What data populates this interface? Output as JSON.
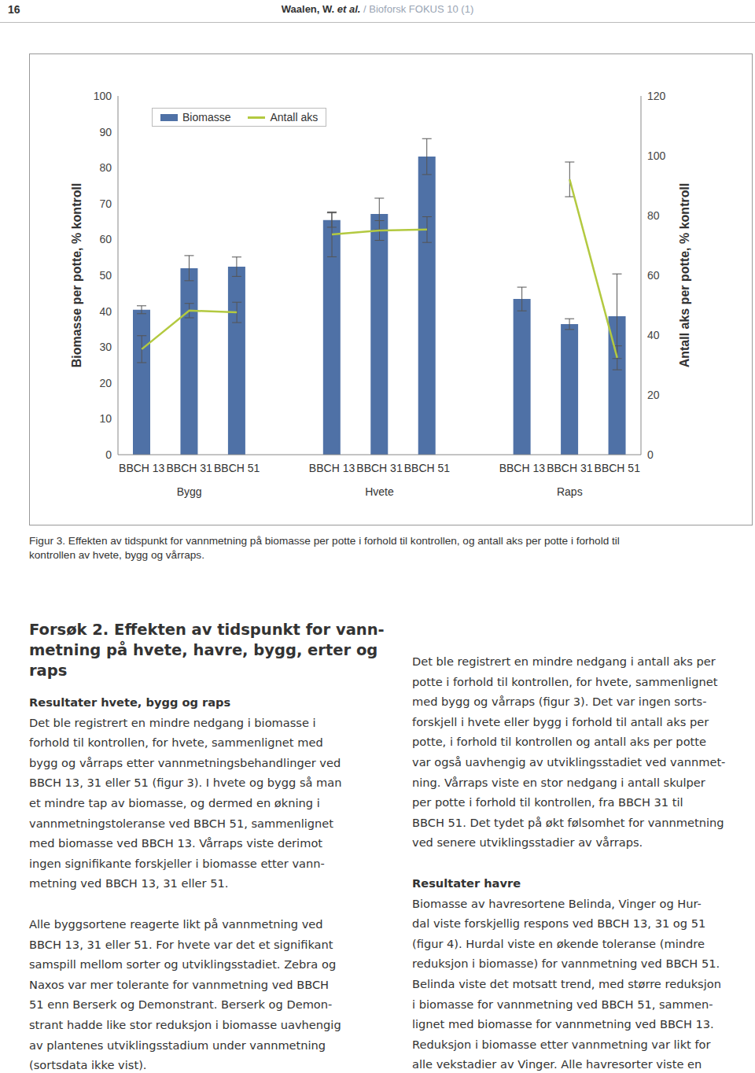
{
  "header": {
    "page_number": "16",
    "authors": "Waalen, W.",
    "et_al": "et al.",
    "journal": "/ Bioforsk FOKUS 10 (1)"
  },
  "chart_data": {
    "type": "bar",
    "categories": [
      "BBCH 13",
      "BBCH 31",
      "BBCH 51",
      null,
      "BBCH 13",
      "BBCH 31",
      "BBCH 51",
      null,
      "BBCH 13",
      "BBCH 31",
      "BBCH 51"
    ],
    "group_labels": [
      null,
      "Bygg",
      null,
      null,
      null,
      "Hvete",
      null,
      null,
      null,
      "Raps",
      null
    ],
    "series": [
      {
        "name": "Biomasse",
        "type": "bar",
        "color": "#4f71a6",
        "values": [
          40.4,
          52.0,
          52.4,
          null,
          65.4,
          67.1,
          83.1,
          null,
          43.4,
          36.4,
          38.6
        ],
        "errors": [
          1.1,
          3.5,
          2.7,
          null,
          2.0,
          4.4,
          5.0,
          null,
          3.3,
          1.5,
          11.8
        ]
      },
      {
        "name": "Antall aks",
        "type": "line",
        "color": "#b3c940",
        "axis": "y2",
        "values": [
          35.3,
          48.2,
          47.6,
          null,
          73.7,
          75.0,
          75.3,
          null,
          null,
          92.1,
          32.4
        ],
        "errors": [
          4.5,
          2.4,
          3.4,
          null,
          7.5,
          3.3,
          4.3,
          null,
          null,
          5.8,
          4.0
        ]
      }
    ],
    "ylabel": "Biomasse per potte, % kontroll",
    "y2label": "Antall aks per potte, % kontroll",
    "ylim": [
      0,
      100
    ],
    "yticks": [
      0,
      10,
      20,
      30,
      40,
      50,
      60,
      70,
      80,
      90,
      100
    ],
    "y2lim": [
      0,
      120
    ],
    "y2ticks": [
      0,
      20,
      40,
      60,
      80,
      100,
      120
    ],
    "legend": "top",
    "grid": false
  },
  "caption": [
    "Figur 3. Effekten av tidspunkt for vannmetning på biomasse per potte i forhold til kontrollen, og antall aks per potte i forhold til",
    "kontrollen av hvete, bygg og vårraps."
  ],
  "body": {
    "left": [
      {
        "kind": "heading",
        "lines": [
          "Forsøk 2. Effekten av tidspunkt for vann-",
          "metning på hvete, havre, bygg, erter og",
          "raps"
        ]
      },
      {
        "kind": "subheading",
        "lines": [
          "Resultater hvete, bygg og raps"
        ]
      },
      {
        "kind": "paragraph",
        "lines": [
          "Det ble registrert en mindre nedgang i biomasse i",
          "forhold til kontrollen, for hvete, sammenlignet med",
          "bygg og vårraps etter vannmetningsbehandlinger ved",
          "BBCH 13, 31 eller 51 (figur 3). I hvete og bygg så man",
          "et mindre tap av biomasse, og dermed en økning i",
          "vannmetningstoleranse ved BBCH 51, sammenlignet",
          "med biomasse ved BBCH 13. Vårraps viste derimot",
          "ingen signifikante forskjeller i biomasse etter vann-",
          "metning ved BBCH 13, 31 eller 51."
        ]
      },
      {
        "kind": "paragraph",
        "lines": [
          "Alle byggsortene reagerte likt på vannmetning ved",
          "BBCH 13, 31 eller 51. For hvete var det et signifikant",
          "samspill mellom sorter og utviklingsstadiet. Zebra og",
          "Naxos var mer tolerante for vannmetning ved BBCH",
          "51 enn Berserk og Demonstrant. Berserk og Demon-",
          "strant hadde like stor reduksjon i biomasse uavhengig",
          "av plantenes utviklingsstadium under vannmetning",
          "(sortsdata ikke vist)."
        ]
      }
    ],
    "right": [
      {
        "kind": "paragraph",
        "lines": [
          "Det ble registrert en mindre nedgang i antall aks per",
          "potte i forhold til kontrollen, for hvete, sammenlignet",
          "med bygg og vårraps (figur 3). Det var ingen sorts-",
          "forskjell i hvete eller bygg i forhold til antall aks per",
          "potte, i forhold til kontrollen og antall aks per potte",
          "var også uavhengig av utviklingsstadiet ved vannmet-",
          "ning. Vårraps viste en stor nedgang i antall skulper",
          "per potte i forhold til kontrollen, fra BBCH 31 til",
          "BBCH 51. Det tydet på økt følsomhet for vannmetning",
          "ved senere utviklingsstadier av vårraps."
        ]
      },
      {
        "kind": "subheading",
        "lines": [
          "Resultater havre"
        ]
      },
      {
        "kind": "paragraph",
        "lines": [
          "Biomasse av havresortene Belinda, Vinger og Hur-",
          "dal viste forskjellig respons ved BBCH 13, 31 og 51",
          "(figur 4). Hurdal viste en økende toleranse (mindre",
          "reduksjon i biomasse) for vannmetning ved BBCH 51.",
          "Belinda viste det motsatt trend, med større reduksjon",
          "i biomasse for vannmetning ved BBCH 51, sammen-",
          "lignet med biomasse for vannmetning ved BBCH 13.",
          "Reduksjon i biomasse etter vannmetning var likt for",
          "alle vekstadier av Vinger. Alle havresorter viste en"
        ]
      }
    ]
  }
}
